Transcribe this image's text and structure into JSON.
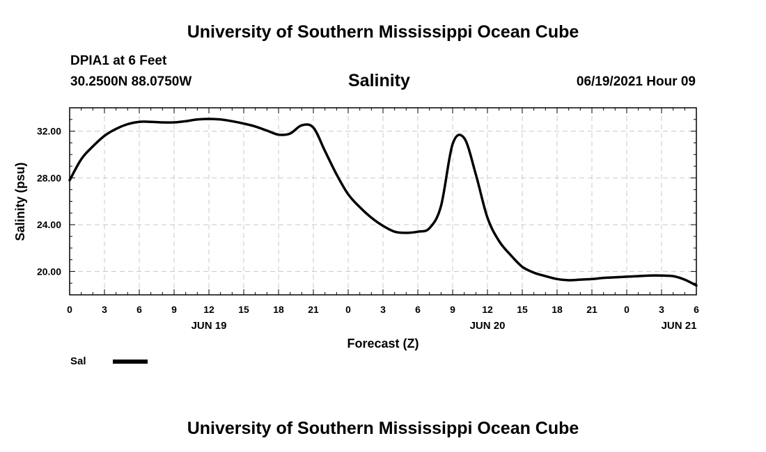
{
  "header": {
    "top_title": "University of Southern Mississippi Ocean Cube",
    "station": "DPIA1 at 6 Feet",
    "coords": "30.2500N  88.0750W",
    "date": "06/19/2021 Hour 09"
  },
  "footer": {
    "title": "University of Southern Mississippi Ocean Cube"
  },
  "legend": {
    "label": "Sal",
    "color": "#000000"
  },
  "chart_data": {
    "type": "line",
    "title": "Salinity",
    "xlabel": "Forecast (Z)",
    "ylabel": "Salinity (psu)",
    "xlim": [
      0,
      54
    ],
    "ylim": [
      18,
      34
    ],
    "grid": true,
    "x_ticks": [
      0,
      3,
      6,
      9,
      12,
      15,
      18,
      21,
      24,
      27,
      30,
      33,
      36,
      39,
      42,
      45,
      48,
      51,
      54
    ],
    "x_tick_labels": [
      "0",
      "3",
      "6",
      "9",
      "12",
      "15",
      "18",
      "21",
      "0",
      "3",
      "6",
      "9",
      "12",
      "15",
      "18",
      "21",
      "0",
      "3",
      "6"
    ],
    "y_ticks": [
      20,
      24,
      28,
      32
    ],
    "y_tick_labels": [
      "20.00",
      "24.00",
      "28.00",
      "32.00"
    ],
    "date_labels": [
      {
        "x": 12,
        "label": "JUN 19"
      },
      {
        "x": 36,
        "label": "JUN 20"
      },
      {
        "x": 52.5,
        "label": "JUN 21"
      }
    ],
    "series": [
      {
        "name": "Sal",
        "x": [
          0,
          1,
          2,
          3,
          4,
          5,
          6,
          7,
          8,
          9,
          10,
          11,
          12,
          13,
          14,
          15,
          16,
          17,
          18,
          19,
          20,
          21,
          22,
          23,
          24,
          25,
          26,
          27,
          28,
          29,
          30,
          31,
          32,
          33,
          34,
          35,
          36,
          37,
          38,
          39,
          40,
          41,
          42,
          43,
          44,
          45,
          46,
          47,
          48,
          49,
          50,
          51,
          52,
          53,
          54
        ],
        "values": [
          27.8,
          29.6,
          30.7,
          31.6,
          32.2,
          32.6,
          32.8,
          32.8,
          32.75,
          32.75,
          32.85,
          33.0,
          33.05,
          33.0,
          32.85,
          32.65,
          32.4,
          32.05,
          31.7,
          31.8,
          32.5,
          32.3,
          30.3,
          28.3,
          26.6,
          25.5,
          24.6,
          23.9,
          23.4,
          23.3,
          23.4,
          23.7,
          25.6,
          30.9,
          31.4,
          28.3,
          24.6,
          22.6,
          21.4,
          20.4,
          19.9,
          19.6,
          19.35,
          19.25,
          19.3,
          19.35,
          19.45,
          19.5,
          19.55,
          19.6,
          19.65,
          19.65,
          19.6,
          19.3,
          18.8
        ]
      }
    ]
  }
}
